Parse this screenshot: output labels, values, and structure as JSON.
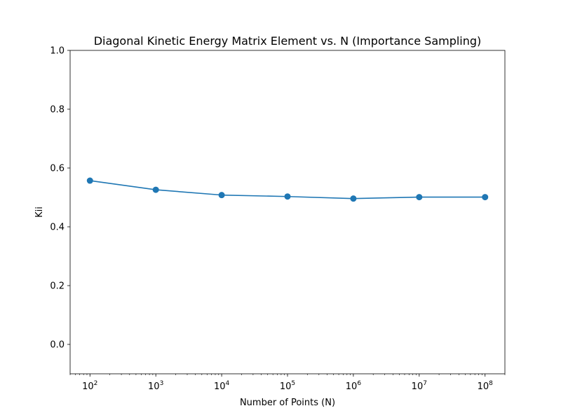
{
  "chart_data": {
    "type": "line",
    "title": "Diagonal Kinetic Energy Matrix Element vs. N (Importance Sampling)",
    "xlabel": "Number of Points (N)",
    "ylabel": "Kii",
    "x_scale": "log",
    "x": [
      100,
      1000,
      10000,
      100000,
      1000000,
      10000000,
      100000000
    ],
    "series": [
      {
        "values": [
          0.557,
          0.526,
          0.508,
          0.503,
          0.496,
          0.501,
          0.501
        ],
        "color": "#1f77b4",
        "marker": "circle"
      }
    ],
    "xlim": [
      50,
      200000000
    ],
    "ylim": [
      -0.1,
      1.0
    ],
    "x_ticks": [
      {
        "value": 100,
        "base": "10",
        "exp": "2"
      },
      {
        "value": 1000,
        "base": "10",
        "exp": "3"
      },
      {
        "value": 10000,
        "base": "10",
        "exp": "4"
      },
      {
        "value": 100000,
        "base": "10",
        "exp": "5"
      },
      {
        "value": 1000000,
        "base": "10",
        "exp": "6"
      },
      {
        "value": 10000000,
        "base": "10",
        "exp": "7"
      },
      {
        "value": 100000000,
        "base": "10",
        "exp": "8"
      }
    ],
    "y_ticks": [
      {
        "value": 0.0,
        "label": "0.0"
      },
      {
        "value": 0.2,
        "label": "0.2"
      },
      {
        "value": 0.4,
        "label": "0.4"
      },
      {
        "value": 0.6,
        "label": "0.6"
      },
      {
        "value": 0.8,
        "label": "0.8"
      },
      {
        "value": 1.0,
        "label": "1.0"
      }
    ],
    "grid": false,
    "legend": false
  }
}
